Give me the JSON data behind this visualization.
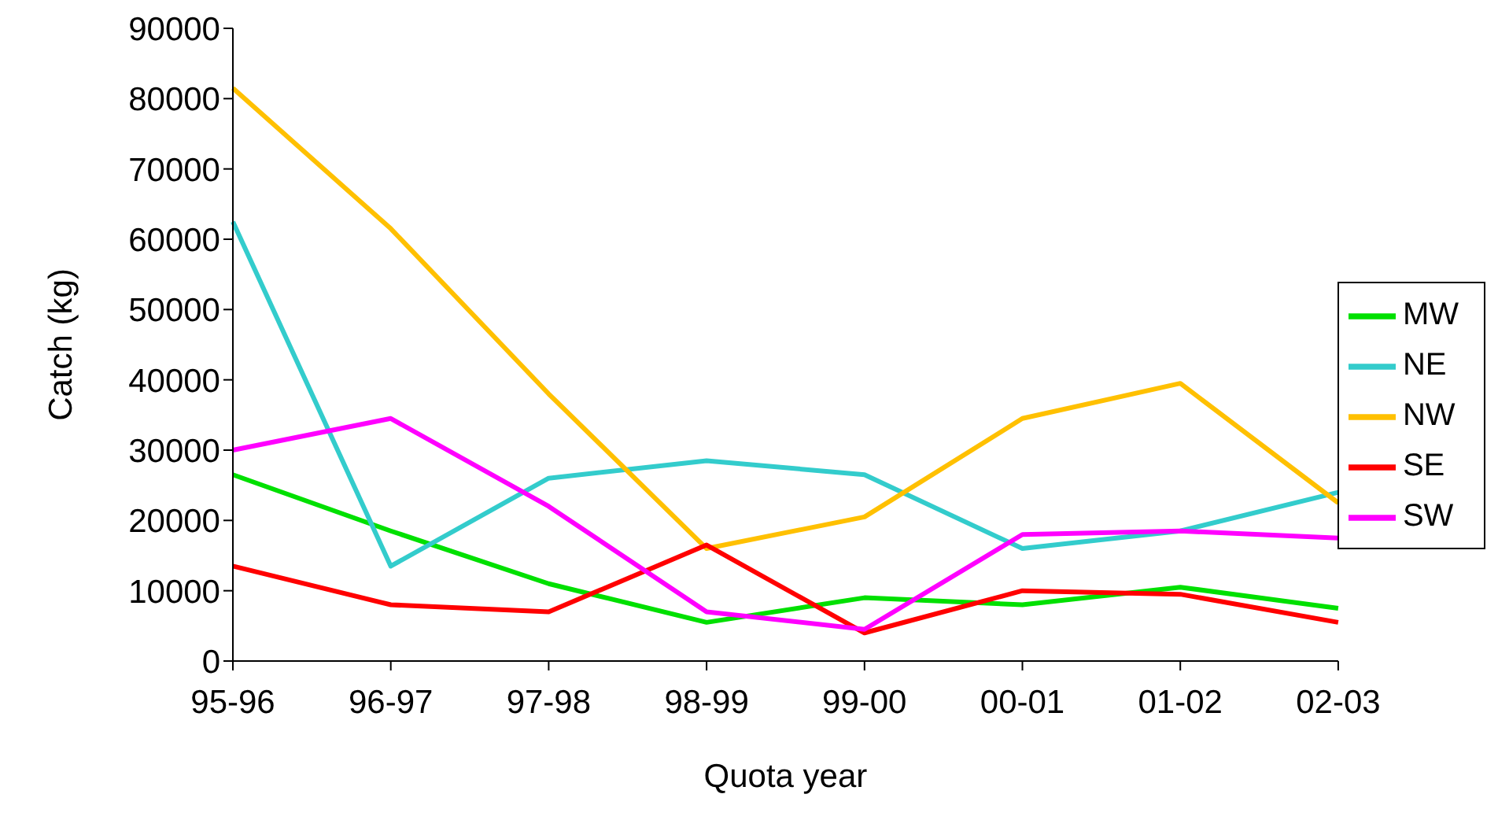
{
  "chart_data": {
    "type": "line",
    "xlabel": "Quota year",
    "ylabel": "Catch (kg)",
    "categories": [
      "95-96",
      "96-97",
      "97-98",
      "98-99",
      "99-00",
      "00-01",
      "01-02",
      "02-03"
    ],
    "series": [
      {
        "name": "MW",
        "color": "#00e000",
        "values": [
          26500,
          18500,
          11000,
          5500,
          9000,
          8000,
          10500,
          7500
        ]
      },
      {
        "name": "NE",
        "color": "#33cccc",
        "values": [
          62500,
          13500,
          26000,
          28500,
          26500,
          16000,
          18500,
          24000
        ]
      },
      {
        "name": "NW",
        "color": "#ffc000",
        "values": [
          81500,
          61500,
          38000,
          16000,
          20500,
          34500,
          39500,
          22500
        ]
      },
      {
        "name": "SE",
        "color": "#ff0000",
        "values": [
          13500,
          8000,
          7000,
          16500,
          4000,
          10000,
          9500,
          5500
        ]
      },
      {
        "name": "SW",
        "color": "#ff00ff",
        "values": [
          30000,
          34500,
          22000,
          7000,
          4500,
          18000,
          18500,
          17500
        ]
      }
    ],
    "ylim": [
      0,
      90000
    ],
    "yticks": [
      0,
      10000,
      20000,
      30000,
      40000,
      50000,
      60000,
      70000,
      80000,
      90000
    ],
    "grid": false,
    "legend": "right",
    "marker": "none",
    "line_style": "solid"
  }
}
